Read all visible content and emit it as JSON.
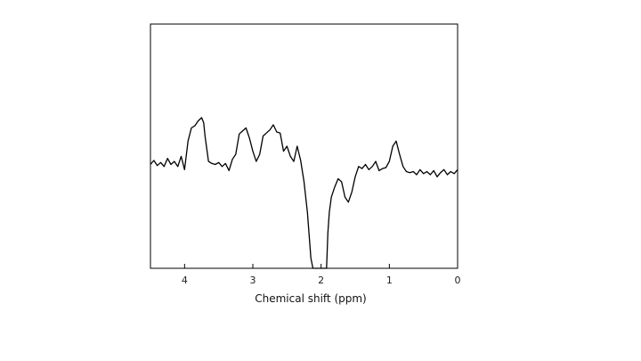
{
  "chart_data": {
    "type": "line",
    "title": "",
    "xlabel": "Chemical shift (ppm)",
    "ylabel": "",
    "xlim": [
      4.5,
      0
    ],
    "x_reversed": true,
    "ylim": [
      -1.0,
      1.4
    ],
    "y_ticks_shown": false,
    "grid": false,
    "legend": "none",
    "x_ticks": [
      4,
      3,
      2,
      1,
      0
    ],
    "x_tick_labels": [
      "4",
      "3",
      "2",
      "1",
      "0"
    ],
    "series": [
      {
        "color": "#000000",
        "x": [
          4.5,
          4.45,
          4.4,
          4.35,
          4.3,
          4.25,
          4.2,
          4.15,
          4.1,
          4.05,
          4.0,
          3.95,
          3.9,
          3.85,
          3.8,
          3.75,
          3.72,
          3.7,
          3.65,
          3.6,
          3.55,
          3.5,
          3.45,
          3.4,
          3.35,
          3.3,
          3.25,
          3.2,
          3.15,
          3.1,
          3.05,
          3.0,
          2.95,
          2.9,
          2.85,
          2.8,
          2.75,
          2.7,
          2.65,
          2.6,
          2.55,
          2.5,
          2.45,
          2.4,
          2.35,
          2.3,
          2.25,
          2.2,
          2.15,
          2.12,
          2.1,
          2.08,
          2.05,
          2.0,
          1.95,
          1.92,
          1.9,
          1.88,
          1.85,
          1.8,
          1.75,
          1.7,
          1.65,
          1.6,
          1.55,
          1.5,
          1.45,
          1.4,
          1.35,
          1.3,
          1.25,
          1.2,
          1.15,
          1.1,
          1.05,
          1.0,
          0.95,
          0.9,
          0.85,
          0.8,
          0.75,
          0.7,
          0.65,
          0.6,
          0.55,
          0.5,
          0.45,
          0.4,
          0.35,
          0.3,
          0.25,
          0.2,
          0.15,
          0.1,
          0.05,
          0.0
        ],
        "y": [
          0.02,
          0.06,
          0.01,
          0.04,
          0.0,
          0.08,
          0.02,
          0.05,
          0.0,
          0.1,
          -0.03,
          0.25,
          0.38,
          0.4,
          0.45,
          0.48,
          0.43,
          0.3,
          0.05,
          0.03,
          0.02,
          0.04,
          0.0,
          0.03,
          -0.04,
          0.07,
          0.12,
          0.32,
          0.35,
          0.38,
          0.28,
          0.15,
          0.05,
          0.12,
          0.3,
          0.33,
          0.36,
          0.41,
          0.34,
          0.33,
          0.15,
          0.2,
          0.1,
          0.05,
          0.2,
          0.06,
          -0.15,
          -0.45,
          -0.9,
          -1.0,
          -1.0,
          -1.0,
          -1.0,
          -1.0,
          -1.0,
          -1.0,
          -0.65,
          -0.45,
          -0.3,
          -0.2,
          -0.12,
          -0.15,
          -0.3,
          -0.35,
          -0.25,
          -0.1,
          0.0,
          -0.02,
          0.02,
          -0.03,
          0.0,
          0.05,
          -0.04,
          -0.02,
          -0.01,
          0.05,
          0.2,
          0.25,
          0.12,
          0.0,
          -0.05,
          -0.06,
          -0.05,
          -0.08,
          -0.03,
          -0.07,
          -0.05,
          -0.08,
          -0.04,
          -0.1,
          -0.06,
          -0.03,
          -0.08,
          -0.05,
          -0.07,
          -0.03
        ]
      }
    ]
  }
}
